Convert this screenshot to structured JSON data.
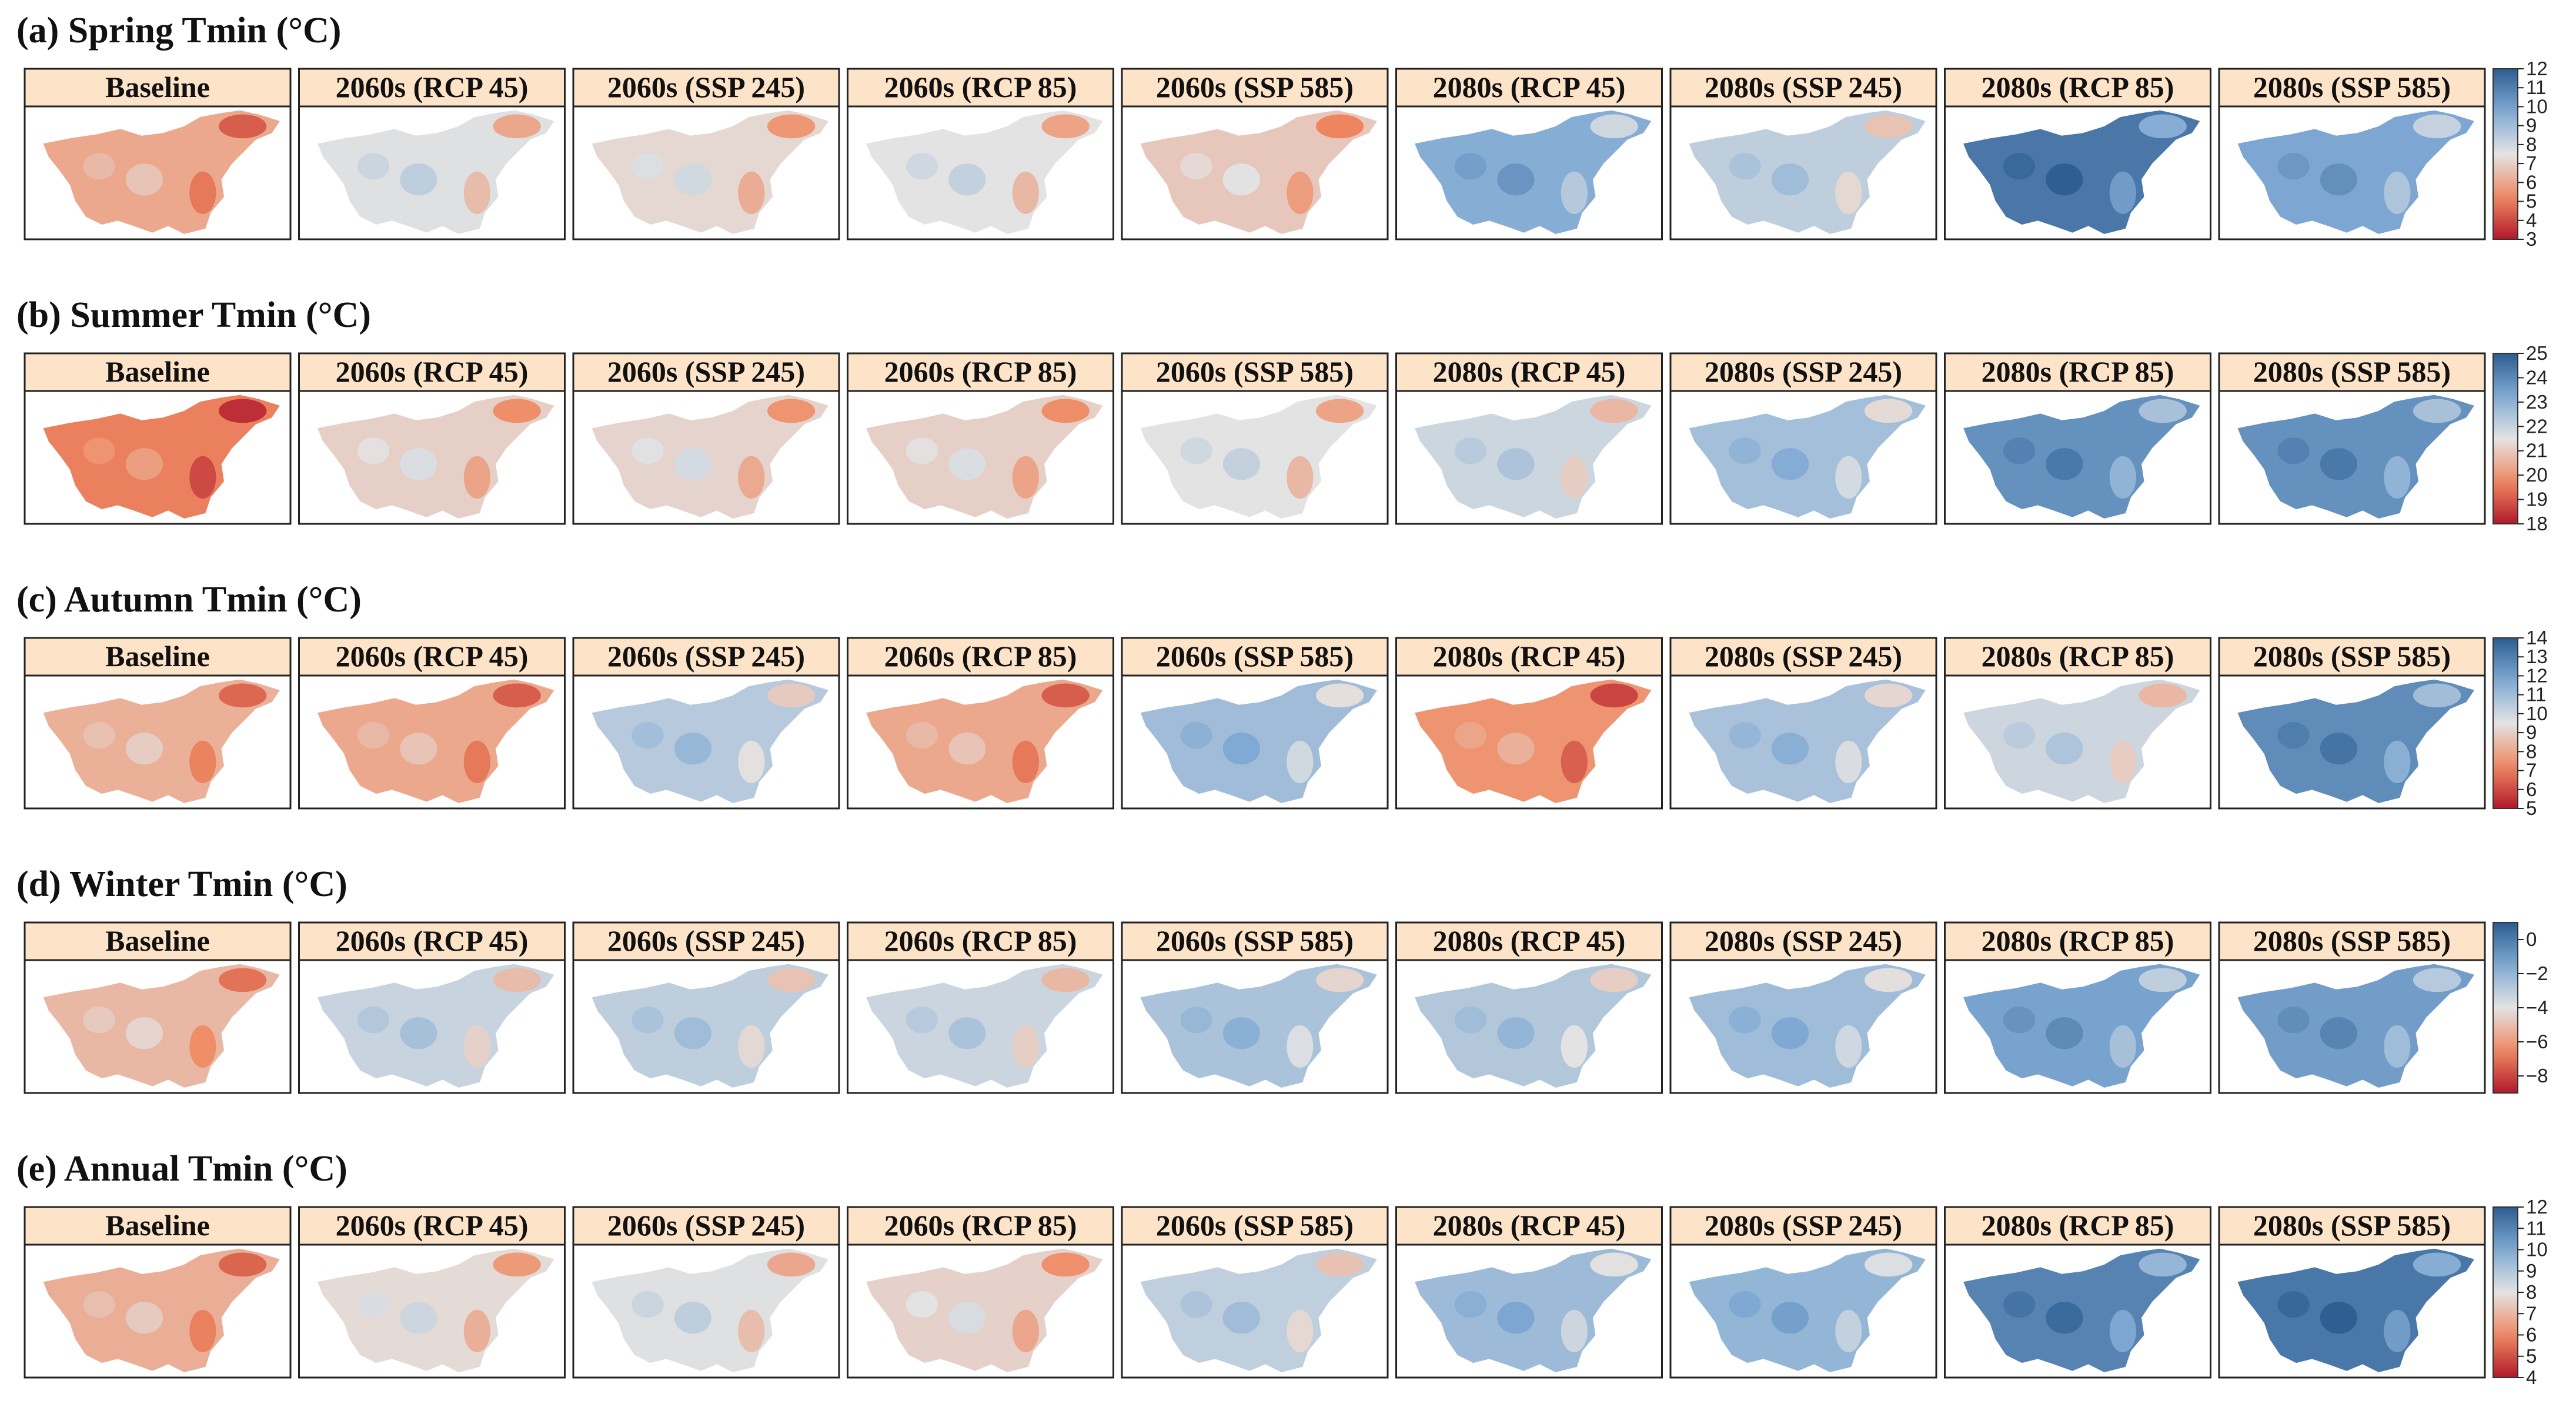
{
  "colors": {
    "strip_fill": "#fde3c8",
    "panel_border": "#222222",
    "scale_low": "#b2182b",
    "scale_mid_low": "#ef8a62",
    "scale_mid": "#e3e3e3",
    "scale_mid_high": "#7fa9d3",
    "scale_high": "#2c5c90"
  },
  "chart_data": {
    "type": "heatmap",
    "description_axes": "choropleth map panels of minimum temperature; rows are seasons, columns are scenarios",
    "scenarios": [
      "Baseline",
      "2060s (RCP 45)",
      "2060s (SSP 245)",
      "2060s (RCP 85)",
      "2060s (SSP 585)",
      "2080s (RCP 45)",
      "2080s (SSP 245)",
      "2080s (RCP 85)",
      "2080s (SSP 585)"
    ],
    "rows": [
      {
        "title": "(a) Spring Tmin (°C)",
        "colorbar": {
          "min": 3,
          "max": 12,
          "ticks": [
            "3",
            "4",
            "5",
            "6",
            "7",
            "8",
            "9",
            "10",
            "11",
            "12"
          ]
        },
        "panel_mean_values": [
          6.0,
          7.6,
          7.2,
          7.5,
          6.8,
          9.6,
          8.3,
          11.2,
          9.8
        ]
      },
      {
        "title": "(b) Summer Tmin (°C)",
        "colorbar": {
          "min": 18,
          "max": 25,
          "ticks": [
            "18",
            "19",
            "20",
            "21",
            "22",
            "23",
            "24",
            "25"
          ]
        },
        "panel_mean_values": [
          19.6,
          21.1,
          21.2,
          21.1,
          21.5,
          21.9,
          22.6,
          23.8,
          23.8
        ]
      },
      {
        "title": "(c) Autumn Tmin (°C)",
        "colorbar": {
          "min": 5,
          "max": 14,
          "ticks": [
            "5",
            "6",
            "7",
            "8",
            "9",
            "10",
            "11",
            "12",
            "13",
            "14"
          ]
        },
        "panel_mean_values": [
          8.2,
          8.0,
          10.5,
          8.0,
          11.0,
          7.5,
          10.8,
          10.0,
          12.6
        ]
      },
      {
        "title": "(d) Winter Tmin (°C)",
        "colorbar": {
          "min": -9,
          "max": 1,
          "ticks": [
            "0",
            "−2",
            "−4",
            "−6",
            "−8"
          ]
        },
        "panel_mean_values": [
          -5.2,
          -3.3,
          -3.1,
          -3.4,
          -2.6,
          -2.8,
          -2.3,
          -1.3,
          -1.1
        ]
      },
      {
        "title": "(e) Annual Tmin (°C)",
        "colorbar": {
          "min": 4,
          "max": 12,
          "ticks": [
            "4",
            "5",
            "6",
            "7",
            "8",
            "9",
            "10",
            "11",
            "12"
          ]
        },
        "panel_mean_values": [
          6.8,
          7.8,
          8.1,
          7.6,
          8.7,
          9.4,
          9.6,
          11.0,
          11.3
        ]
      }
    ]
  }
}
